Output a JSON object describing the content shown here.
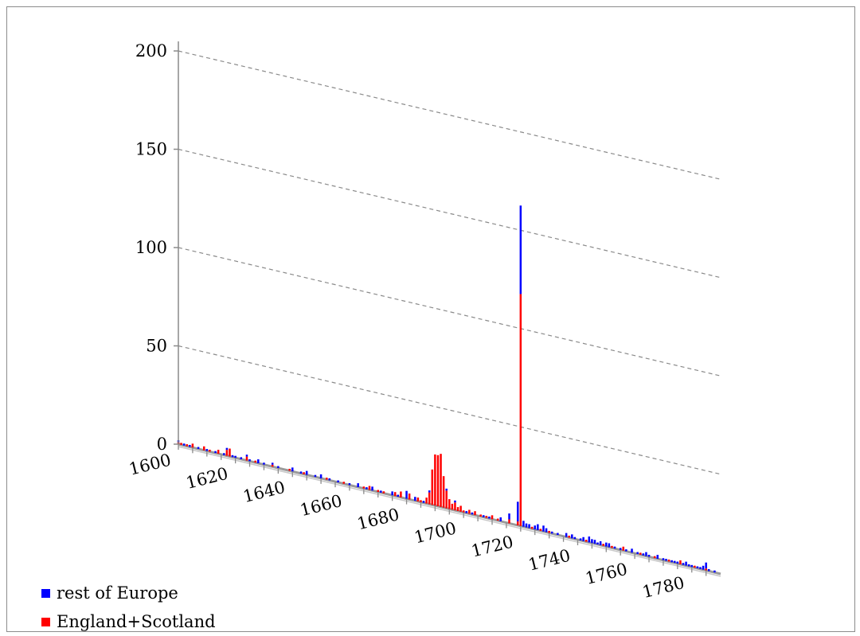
{
  "chart_data": {
    "type": "bar",
    "subtype": "stacked-3d-perspective",
    "title": "",
    "xlabel": "",
    "ylabel": "",
    "ylim": [
      0,
      200
    ],
    "yticks": [
      0,
      50,
      100,
      150,
      200
    ],
    "xlim": [
      1600,
      1789
    ],
    "xticks": [
      1600,
      1620,
      1640,
      1660,
      1680,
      1700,
      1720,
      1740,
      1760,
      1780
    ],
    "grid": "horizontal dashed",
    "legend_position": "bottom-left",
    "series": [
      {
        "name": "England+Scotland",
        "color": "#ff0000",
        "points": [
          [
            1600,
            1
          ],
          [
            1601,
            1
          ],
          [
            1603,
            1
          ],
          [
            1605,
            2
          ],
          [
            1609,
            2
          ],
          [
            1611,
            1
          ],
          [
            1614,
            2
          ],
          [
            1617,
            3
          ],
          [
            1618,
            4
          ],
          [
            1624,
            2
          ],
          [
            1627,
            1
          ],
          [
            1633,
            1
          ],
          [
            1639,
            1
          ],
          [
            1644,
            1
          ],
          [
            1652,
            1
          ],
          [
            1658,
            1
          ],
          [
            1665,
            1
          ],
          [
            1667,
            2
          ],
          [
            1670,
            1
          ],
          [
            1672,
            1
          ],
          [
            1676,
            2
          ],
          [
            1678,
            3
          ],
          [
            1681,
            3
          ],
          [
            1684,
            2
          ],
          [
            1685,
            1
          ],
          [
            1687,
            3
          ],
          [
            1688,
            6
          ],
          [
            1689,
            18
          ],
          [
            1690,
            26
          ],
          [
            1691,
            26
          ],
          [
            1692,
            27
          ],
          [
            1693,
            16
          ],
          [
            1694,
            9
          ],
          [
            1695,
            5
          ],
          [
            1696,
            3
          ],
          [
            1697,
            4
          ],
          [
            1698,
            2
          ],
          [
            1699,
            3
          ],
          [
            1700,
            1
          ],
          [
            1702,
            2
          ],
          [
            1704,
            2
          ],
          [
            1706,
            1
          ],
          [
            1708,
            1
          ],
          [
            1710,
            2
          ],
          [
            1712,
            1
          ],
          [
            1716,
            2
          ],
          [
            1719,
            2
          ],
          [
            1720,
            118
          ],
          [
            1724,
            1
          ],
          [
            1727,
            1
          ],
          [
            1730,
            1
          ],
          [
            1737,
            1
          ],
          [
            1743,
            1
          ],
          [
            1749,
            1
          ],
          [
            1752,
            1
          ],
          [
            1756,
            2
          ],
          [
            1762,
            1
          ],
          [
            1767,
            1
          ],
          [
            1772,
            1
          ],
          [
            1776,
            2
          ],
          [
            1781,
            1
          ],
          [
            1785,
            1
          ]
        ]
      },
      {
        "name": "rest of Europe",
        "color": "#0000ff",
        "points": [
          [
            1600,
            1
          ],
          [
            1602,
            1
          ],
          [
            1604,
            1
          ],
          [
            1607,
            1
          ],
          [
            1610,
            1
          ],
          [
            1613,
            1
          ],
          [
            1616,
            1
          ],
          [
            1617,
            1
          ],
          [
            1619,
            1
          ],
          [
            1620,
            1
          ],
          [
            1622,
            1
          ],
          [
            1624,
            1
          ],
          [
            1625,
            1
          ],
          [
            1628,
            2
          ],
          [
            1630,
            1
          ],
          [
            1633,
            1
          ],
          [
            1635,
            1
          ],
          [
            1640,
            2
          ],
          [
            1643,
            1
          ],
          [
            1645,
            2
          ],
          [
            1648,
            1
          ],
          [
            1650,
            2
          ],
          [
            1653,
            1
          ],
          [
            1656,
            1
          ],
          [
            1660,
            1
          ],
          [
            1663,
            2
          ],
          [
            1666,
            1
          ],
          [
            1668,
            2
          ],
          [
            1671,
            1
          ],
          [
            1675,
            2
          ],
          [
            1677,
            1
          ],
          [
            1680,
            4
          ],
          [
            1683,
            2
          ],
          [
            1686,
            1
          ],
          [
            1688,
            1
          ],
          [
            1694,
            1
          ],
          [
            1697,
            1
          ],
          [
            1701,
            1
          ],
          [
            1703,
            1
          ],
          [
            1707,
            1
          ],
          [
            1709,
            1
          ],
          [
            1713,
            2
          ],
          [
            1716,
            3
          ],
          [
            1719,
            10
          ],
          [
            1720,
            45
          ],
          [
            1721,
            3
          ],
          [
            1722,
            2
          ],
          [
            1723,
            2
          ],
          [
            1725,
            2
          ],
          [
            1726,
            3
          ],
          [
            1728,
            3
          ],
          [
            1729,
            2
          ],
          [
            1731,
            1
          ],
          [
            1733,
            1
          ],
          [
            1736,
            2
          ],
          [
            1738,
            2
          ],
          [
            1739,
            1
          ],
          [
            1741,
            1
          ],
          [
            1742,
            2
          ],
          [
            1744,
            3
          ],
          [
            1745,
            2
          ],
          [
            1746,
            2
          ],
          [
            1747,
            1
          ],
          [
            1748,
            2
          ],
          [
            1750,
            2
          ],
          [
            1751,
            2
          ],
          [
            1753,
            1
          ],
          [
            1755,
            1
          ],
          [
            1757,
            1
          ],
          [
            1759,
            2
          ],
          [
            1761,
            1
          ],
          [
            1763,
            1
          ],
          [
            1764,
            2
          ],
          [
            1765,
            1
          ],
          [
            1768,
            2
          ],
          [
            1770,
            1
          ],
          [
            1771,
            1
          ],
          [
            1773,
            1
          ],
          [
            1774,
            1
          ],
          [
            1775,
            1
          ],
          [
            1777,
            1
          ],
          [
            1778,
            2
          ],
          [
            1779,
            1
          ],
          [
            1780,
            1
          ],
          [
            1782,
            1
          ],
          [
            1783,
            1
          ],
          [
            1784,
            2
          ],
          [
            1785,
            3
          ],
          [
            1786,
            1
          ],
          [
            1788,
            1
          ]
        ]
      }
    ]
  }
}
